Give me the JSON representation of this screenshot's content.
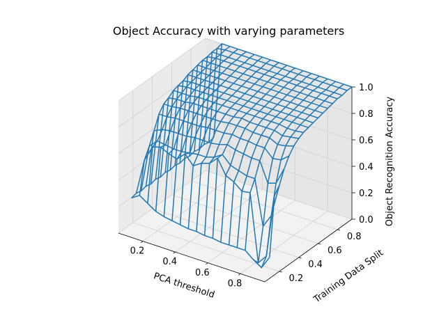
{
  "chart_data": {
    "type": "surface-wireframe",
    "title": "Object Accuracy with varying parameters",
    "xlabel": "PCA threshold",
    "ylabel": "Training Data Split",
    "zlabel": "Object Recognition Accuracy",
    "xlim": [
      0.05,
      0.95
    ],
    "ylim": [
      0.05,
      0.95
    ],
    "zlim": [
      0,
      1
    ],
    "xticks": [
      "0.2",
      "0.4",
      "0.6",
      "0.8"
    ],
    "yticks": [
      "0.2",
      "0.4",
      "0.6",
      "0.8"
    ],
    "zticks": [
      "0.0",
      "0.2",
      "0.4",
      "0.6",
      "0.8",
      "1.0"
    ],
    "grid": true,
    "line_color": "#1f77b4",
    "x": [
      0.1,
      0.15,
      0.2,
      0.25,
      0.3,
      0.35,
      0.4,
      0.45,
      0.5,
      0.55,
      0.6,
      0.65,
      0.7,
      0.75,
      0.8,
      0.85,
      0.9,
      0.95
    ],
    "y": [
      0.1,
      0.15,
      0.2,
      0.25,
      0.3,
      0.35,
      0.4,
      0.45,
      0.5,
      0.55,
      0.6,
      0.65,
      0.7,
      0.75,
      0.8,
      0.85,
      0.9,
      0.95
    ],
    "z": [
      [
        0.26,
        0.27,
        0.26,
        0.27,
        0.26,
        0.27,
        0.26,
        0.27,
        0.26,
        0.27,
        0.26,
        0.27,
        0.26,
        0.27,
        0.26,
        0.27,
        0.26,
        0.27
      ],
      [
        0.3,
        0.54,
        0.62,
        0.71,
        0.81,
        0.86,
        0.88,
        0.91,
        0.92,
        0.93,
        0.95,
        0.96,
        0.97,
        0.98,
        0.98,
        0.99,
        0.99,
        1.0
      ],
      [
        0.26,
        0.66,
        0.68,
        0.74,
        0.81,
        0.86,
        0.89,
        0.91,
        0.93,
        0.94,
        0.95,
        0.96,
        0.97,
        0.98,
        0.99,
        0.99,
        1.0,
        1.0
      ],
      [
        0.22,
        0.68,
        0.67,
        0.75,
        0.82,
        0.87,
        0.89,
        0.91,
        0.93,
        0.94,
        0.95,
        0.96,
        0.97,
        0.98,
        0.99,
        0.99,
        1.0,
        1.0
      ],
      [
        0.2,
        0.65,
        0.66,
        0.75,
        0.82,
        0.87,
        0.9,
        0.92,
        0.93,
        0.94,
        0.95,
        0.96,
        0.97,
        0.98,
        0.99,
        0.99,
        1.0,
        1.0
      ],
      [
        0.19,
        0.63,
        0.66,
        0.75,
        0.82,
        0.87,
        0.9,
        0.92,
        0.93,
        0.94,
        0.95,
        0.96,
        0.97,
        0.98,
        0.99,
        0.99,
        1.0,
        1.0
      ],
      [
        0.18,
        0.69,
        0.67,
        0.76,
        0.82,
        0.87,
        0.9,
        0.92,
        0.93,
        0.94,
        0.95,
        0.96,
        0.97,
        0.98,
        0.99,
        0.99,
        1.0,
        1.0
      ],
      [
        0.17,
        0.62,
        0.68,
        0.76,
        0.83,
        0.87,
        0.9,
        0.92,
        0.93,
        0.94,
        0.95,
        0.96,
        0.97,
        0.98,
        0.99,
        0.99,
        1.0,
        1.0
      ],
      [
        0.17,
        0.66,
        0.68,
        0.76,
        0.83,
        0.87,
        0.9,
        0.92,
        0.93,
        0.94,
        0.95,
        0.96,
        0.97,
        0.98,
        0.99,
        0.99,
        1.0,
        1.0
      ],
      [
        0.16,
        0.68,
        0.7,
        0.77,
        0.83,
        0.88,
        0.9,
        0.92,
        0.93,
        0.94,
        0.95,
        0.96,
        0.97,
        0.98,
        0.99,
        0.99,
        1.0,
        1.0
      ],
      [
        0.16,
        0.74,
        0.74,
        0.79,
        0.84,
        0.88,
        0.91,
        0.92,
        0.93,
        0.94,
        0.95,
        0.96,
        0.97,
        0.98,
        0.99,
        0.99,
        1.0,
        1.0
      ],
      [
        0.15,
        0.63,
        0.68,
        0.77,
        0.83,
        0.88,
        0.9,
        0.92,
        0.93,
        0.94,
        0.95,
        0.96,
        0.97,
        0.98,
        0.99,
        0.99,
        1.0,
        1.0
      ],
      [
        0.15,
        0.6,
        0.66,
        0.76,
        0.83,
        0.87,
        0.9,
        0.92,
        0.93,
        0.94,
        0.95,
        0.96,
        0.97,
        0.98,
        0.99,
        0.99,
        1.0,
        1.0
      ],
      [
        0.15,
        0.55,
        0.64,
        0.75,
        0.82,
        0.87,
        0.9,
        0.92,
        0.93,
        0.94,
        0.95,
        0.96,
        0.97,
        0.98,
        0.99,
        0.99,
        1.0,
        1.0
      ],
      [
        0.15,
        0.56,
        0.64,
        0.75,
        0.82,
        0.87,
        0.9,
        0.92,
        0.93,
        0.94,
        0.95,
        0.96,
        0.97,
        0.98,
        0.99,
        0.99,
        1.0,
        1.0
      ],
      [
        0.1,
        0.05,
        0.3,
        0.6,
        0.76,
        0.84,
        0.88,
        0.91,
        0.93,
        0.94,
        0.95,
        0.96,
        0.97,
        0.98,
        0.99,
        0.99,
        1.0,
        1.0
      ],
      [
        0.06,
        0.12,
        0.4,
        0.62,
        0.77,
        0.85,
        0.89,
        0.91,
        0.93,
        0.94,
        0.95,
        0.96,
        0.97,
        0.98,
        0.99,
        0.99,
        1.0,
        1.0
      ],
      [
        0.16,
        0.6,
        0.65,
        0.75,
        0.82,
        0.87,
        0.9,
        0.92,
        0.93,
        0.94,
        0.95,
        0.96,
        0.97,
        0.98,
        0.99,
        0.99,
        1.0,
        1.0
      ]
    ]
  }
}
